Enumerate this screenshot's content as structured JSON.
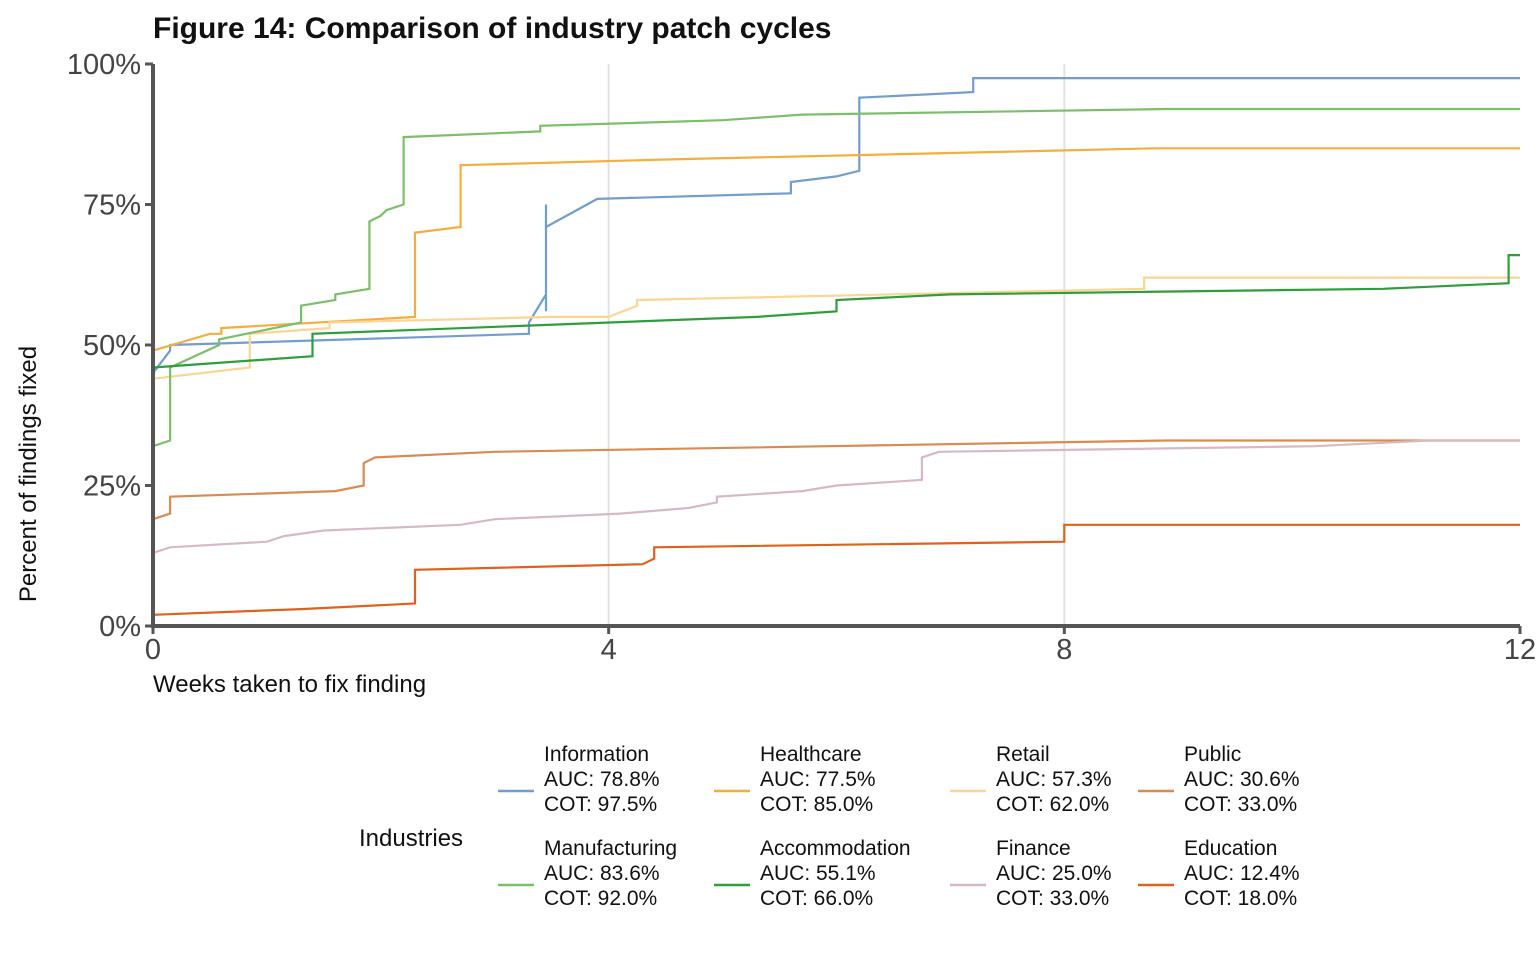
{
  "chart_data": {
    "type": "line",
    "title": "Figure 14: Comparison of industry patch cycles",
    "xlabel": "Weeks taken to fix finding",
    "ylabel": "Percent of findings fixed",
    "xlim": [
      0,
      12
    ],
    "ylim": [
      0,
      100
    ],
    "x_ticks": [
      0,
      4,
      8,
      12
    ],
    "x_tick_labels": [
      "0",
      "4",
      "8",
      "12"
    ],
    "y_ticks": [
      0,
      25,
      50,
      75,
      100
    ],
    "y_tick_labels": [
      "0%",
      "25%",
      "50%",
      "75%",
      "100%"
    ],
    "grid": "vertical",
    "legend_title": "Industries",
    "legend_position": "bottom",
    "series": [
      {
        "name": "Information",
        "auc": "AUC: 78.8%",
        "cot": "COT: 97.5%",
        "color": "#729ecf",
        "x": [
          0,
          0.15,
          0.15,
          3.3,
          3.3,
          3.45,
          3.45,
          3.45,
          3.45,
          3.45,
          3.9,
          5.6,
          5.6,
          6.0,
          6.2,
          6.2,
          7.2,
          7.2,
          12
        ],
        "y": [
          45,
          49,
          50,
          52,
          54,
          59,
          56,
          75,
          71,
          71,
          76,
          77,
          79,
          80,
          81,
          94,
          95,
          97.5,
          97.5
        ]
      },
      {
        "name": "Healthcare",
        "auc": "AUC: 77.5%",
        "cot": "COT: 85.0%",
        "color": "#f5ae3b",
        "x": [
          0,
          0.5,
          0.6,
          0.6,
          2.3,
          2.3,
          2.7,
          2.7,
          4.5,
          8.8,
          12
        ],
        "y": [
          49,
          52,
          52,
          53,
          55,
          70,
          71,
          82,
          83,
          85,
          85
        ],
        "y_end": 85
      },
      {
        "name": "Retail",
        "auc": "AUC: 57.3%",
        "cot": "COT: 62.0%",
        "color": "#fad694",
        "x": [
          0,
          0.85,
          0.85,
          1.55,
          1.55,
          3.5,
          3.5,
          4.0,
          4.25,
          4.25,
          8.7,
          8.7,
          12
        ],
        "y": [
          44,
          46,
          52,
          53,
          54,
          55,
          55,
          55,
          57,
          58,
          60,
          62,
          62
        ]
      },
      {
        "name": "Public",
        "auc": "AUC: 30.6%",
        "cot": "COT: 33.0%",
        "color": "#d98b52",
        "x": [
          0,
          0.15,
          0.15,
          1.6,
          1.85,
          1.85,
          1.95,
          3.0,
          8.9,
          12
        ],
        "y": [
          19,
          20,
          23,
          24,
          25,
          29,
          30,
          31,
          33,
          33
        ]
      },
      {
        "name": "Manufacturing",
        "auc": "AUC: 83.6%",
        "cot": "COT: 92.0%",
        "color": "#7bbf6a",
        "x": [
          0,
          0.15,
          0.15,
          0.58,
          0.58,
          1.3,
          1.3,
          1.6,
          1.6,
          1.9,
          1.9,
          2.0,
          2.05,
          2.2,
          2.2,
          3.4,
          3.4,
          5.0,
          5.7,
          8.9,
          12
        ],
        "y": [
          32,
          33,
          46,
          50,
          51,
          54,
          57,
          58,
          59,
          60,
          72,
          73,
          74,
          75,
          87,
          88,
          89,
          90,
          91,
          92,
          92
        ]
      },
      {
        "name": "Accommodation",
        "auc": "AUC: 55.1%",
        "cot": "COT: 66.0%",
        "color": "#2e9e3c",
        "x": [
          0,
          1.4,
          1.4,
          5.3,
          6.0,
          6.0,
          7.0,
          10.8,
          11.9,
          11.9,
          12
        ],
        "y": [
          46,
          48,
          52,
          55,
          56,
          58,
          59,
          60,
          61,
          66,
          66
        ]
      },
      {
        "name": "Finance",
        "auc": "AUC: 25.0%",
        "cot": "COT: 33.0%",
        "color": "#d5bac2",
        "x": [
          0,
          0.15,
          1.0,
          1.15,
          1.5,
          2.7,
          3.0,
          4.1,
          4.7,
          4.95,
          4.95,
          5.7,
          6.0,
          6.75,
          6.75,
          6.9,
          10.2,
          11.2,
          12
        ],
        "y": [
          13,
          14,
          15,
          16,
          17,
          18,
          19,
          20,
          21,
          22,
          23,
          24,
          25,
          26,
          30,
          31,
          32,
          33,
          33
        ]
      },
      {
        "name": "Education",
        "auc": "AUC: 12.4%",
        "cot": "COT: 18.0%",
        "color": "#e0611b",
        "x": [
          0,
          1.3,
          2.3,
          2.3,
          4.3,
          4.4,
          4.4,
          8.0,
          8.0,
          12
        ],
        "y": [
          2,
          3,
          4,
          10,
          11,
          12,
          14,
          15,
          18,
          18
        ]
      }
    ]
  }
}
